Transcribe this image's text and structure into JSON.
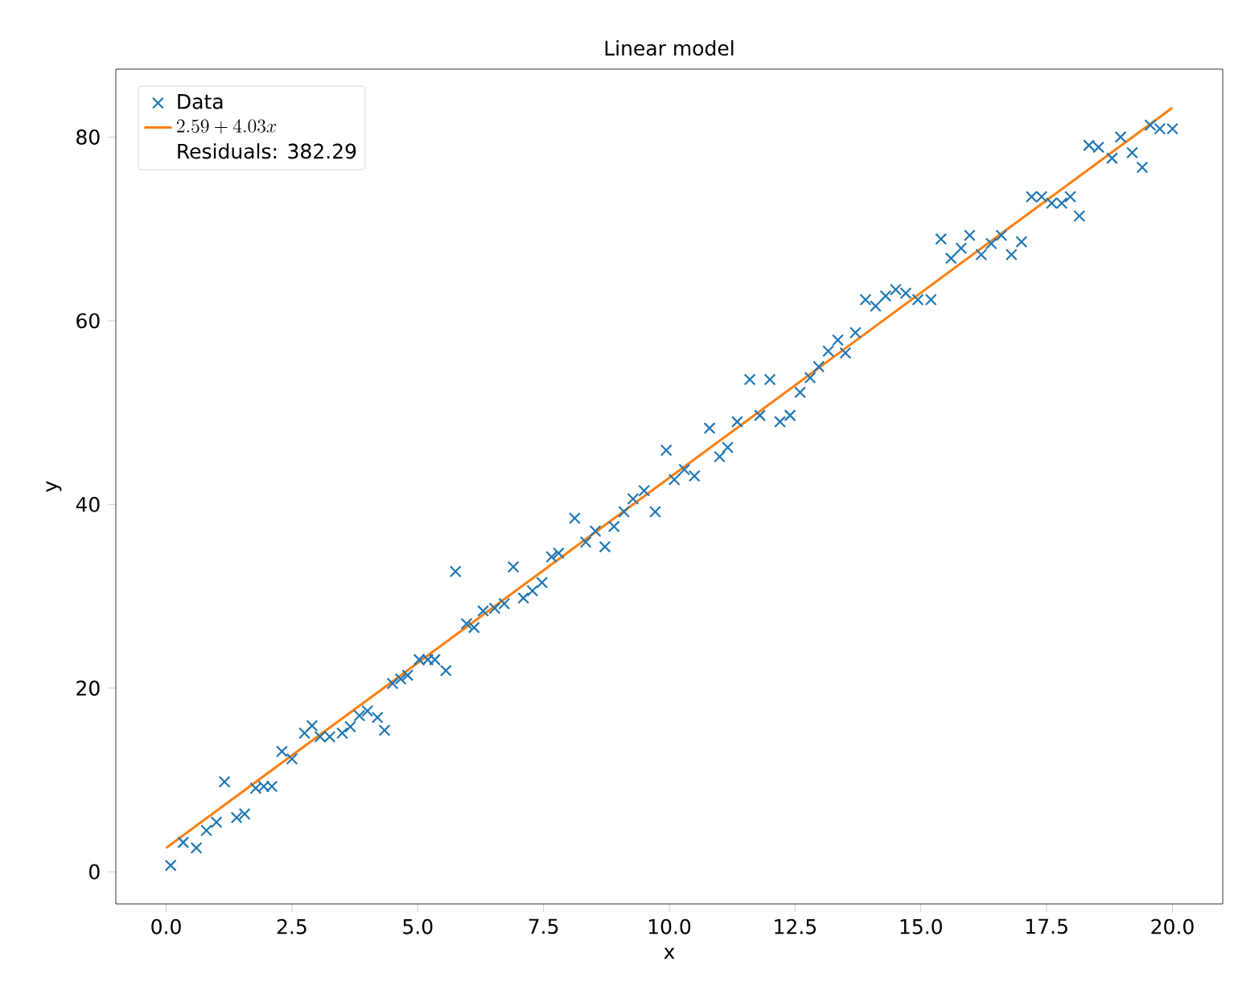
{
  "chart_data": {
    "type": "scatter",
    "title": "Linear model",
    "xlabel": "x",
    "ylabel": "y",
    "xlim": [
      -1,
      21
    ],
    "ylim": [
      -3.5,
      87.4
    ],
    "xticks": [
      {
        "value": 0,
        "label": "0.0"
      },
      {
        "value": 2.5,
        "label": "2.5"
      },
      {
        "value": 5,
        "label": "5.0"
      },
      {
        "value": 7.5,
        "label": "7.5"
      },
      {
        "value": 10,
        "label": "10.0"
      },
      {
        "value": 12.5,
        "label": "12.5"
      },
      {
        "value": 15,
        "label": "15.0"
      },
      {
        "value": 17.5,
        "label": "17.5"
      },
      {
        "value": 20,
        "label": "20.0"
      }
    ],
    "yticks": [
      0,
      20,
      40,
      60,
      80
    ],
    "legend": "top left",
    "marker": "cross",
    "grid": false,
    "annotations": [
      "Residuals: 382.29"
    ],
    "series": [
      {
        "name": "Data",
        "color": "#1f77b4",
        "x": [
          0.09,
          0.34,
          0.6,
          0.8,
          1.0,
          1.16,
          1.4,
          1.56,
          1.78,
          1.94,
          2.1,
          2.3,
          2.5,
          2.75,
          2.9,
          3.06,
          3.25,
          3.5,
          3.66,
          3.84,
          4.0,
          4.2,
          4.34,
          4.5,
          4.66,
          4.8,
          5.03,
          5.2,
          5.34,
          5.56,
          5.75,
          5.97,
          6.12,
          6.3,
          6.53,
          6.72,
          6.9,
          7.1,
          7.28,
          7.47,
          7.66,
          7.8,
          8.12,
          8.34,
          8.53,
          8.72,
          8.9,
          9.1,
          9.28,
          9.5,
          9.72,
          9.94,
          10.1,
          10.3,
          10.5,
          10.8,
          11.0,
          11.16,
          11.35,
          11.6,
          11.8,
          12.0,
          12.2,
          12.4,
          12.6,
          12.8,
          12.97,
          13.16,
          13.35,
          13.5,
          13.7,
          13.9,
          14.1,
          14.3,
          14.5,
          14.7,
          14.94,
          15.2,
          15.4,
          15.6,
          15.8,
          15.97,
          16.2,
          16.4,
          16.6,
          16.8,
          17.0,
          17.2,
          17.4,
          17.6,
          17.8,
          17.97,
          18.15,
          18.34,
          18.53,
          18.8,
          18.97,
          19.2,
          19.4,
          19.56,
          19.75,
          20.0
        ],
        "values": [
          0.7,
          3.2,
          2.6,
          4.5,
          5.4,
          9.8,
          5.9,
          6.3,
          9.1,
          9.3,
          9.3,
          13.1,
          12.3,
          15.1,
          15.9,
          14.7,
          14.7,
          15.1,
          15.8,
          17.0,
          17.5,
          16.8,
          15.4,
          20.5,
          21.0,
          21.4,
          23.1,
          23.1,
          23.1,
          21.9,
          32.7,
          27.0,
          26.6,
          28.4,
          28.7,
          29.2,
          33.2,
          29.8,
          30.6,
          31.5,
          34.3,
          34.7,
          38.5,
          35.9,
          37.1,
          35.4,
          37.6,
          39.2,
          40.6,
          41.5,
          39.2,
          45.9,
          42.7,
          43.8,
          43.1,
          48.3,
          45.2,
          46.2,
          49.0,
          53.6,
          49.7,
          53.6,
          49.0,
          49.7,
          52.2,
          53.8,
          55.0,
          56.7,
          57.9,
          56.5,
          58.7,
          62.3,
          61.6,
          62.7,
          63.4,
          63.0,
          62.3,
          62.3,
          68.9,
          66.8,
          67.9,
          69.3,
          67.2,
          68.4,
          69.3,
          67.2,
          68.6,
          73.5,
          73.5,
          72.8,
          72.8,
          73.5,
          71.4,
          79.1,
          78.9,
          77.7,
          80.0,
          78.3,
          76.7,
          81.3,
          80.9,
          80.9
        ]
      },
      {
        "name": "2.59 + 4.03x",
        "type": "line",
        "color": "#ff7f0e",
        "marker": "none",
        "x": [
          0,
          20
        ],
        "values": [
          2.6,
          83.2
        ]
      }
    ]
  }
}
